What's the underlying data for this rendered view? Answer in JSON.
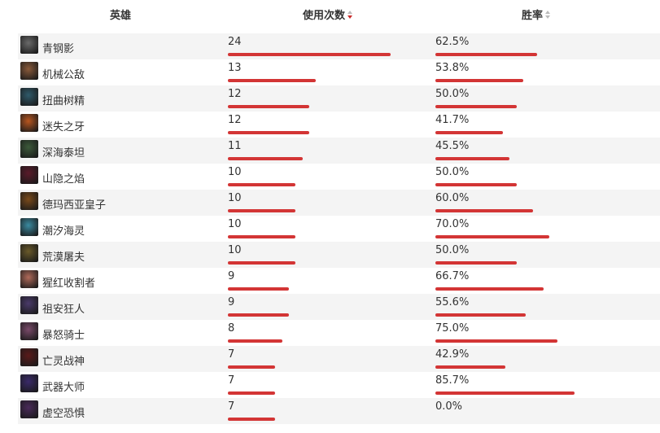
{
  "header": {
    "hero_label": "英雄",
    "usage_label": "使用次数",
    "winrate_label": "胜率",
    "usage_sort_icon": "sort-desc-icon",
    "winrate_sort_icon": "sort-icon"
  },
  "colors": {
    "bar": "#d33535",
    "stripe": "#f4f4f4",
    "sort_active": "#c92a2a"
  },
  "max_usage": 24,
  "rows": [
    {
      "name": "青钢影",
      "usage": "24",
      "usage_num": 24,
      "winrate": "62.5%",
      "winrate_num": 62.5,
      "avatar_color": "#6a6a6a"
    },
    {
      "name": "机械公敌",
      "usage": "13",
      "usage_num": 13,
      "winrate": "53.8%",
      "winrate_num": 53.8,
      "avatar_color": "#8a5a3a"
    },
    {
      "name": "扭曲树精",
      "usage": "12",
      "usage_num": 12,
      "winrate": "50.0%",
      "winrate_num": 50.0,
      "avatar_color": "#2f5a6a"
    },
    {
      "name": "迷失之牙",
      "usage": "12",
      "usage_num": 12,
      "winrate": "41.7%",
      "winrate_num": 41.7,
      "avatar_color": "#b8561f"
    },
    {
      "name": "深海泰坦",
      "usage": "11",
      "usage_num": 11,
      "winrate": "45.5%",
      "winrate_num": 45.5,
      "avatar_color": "#3c5a3a"
    },
    {
      "name": "山隐之焰",
      "usage": "10",
      "usage_num": 10,
      "winrate": "50.0%",
      "winrate_num": 50.0,
      "avatar_color": "#5a1a2a"
    },
    {
      "name": "德玛西亚皇子",
      "usage": "10",
      "usage_num": 10,
      "winrate": "60.0%",
      "winrate_num": 60.0,
      "avatar_color": "#7a4a1a"
    },
    {
      "name": "潮汐海灵",
      "usage": "10",
      "usage_num": 10,
      "winrate": "70.0%",
      "winrate_num": 70.0,
      "avatar_color": "#3a8aa0"
    },
    {
      "name": "荒漠屠夫",
      "usage": "10",
      "usage_num": 10,
      "winrate": "50.0%",
      "winrate_num": 50.0,
      "avatar_color": "#6a5a2a"
    },
    {
      "name": "猩红收割者",
      "usage": "9",
      "usage_num": 9,
      "winrate": "66.7%",
      "winrate_num": 66.7,
      "avatar_color": "#b06a5a"
    },
    {
      "name": "祖安狂人",
      "usage": "9",
      "usage_num": 9,
      "winrate": "55.6%",
      "winrate_num": 55.6,
      "avatar_color": "#4a3a6a"
    },
    {
      "name": "暴怒骑士",
      "usage": "8",
      "usage_num": 8,
      "winrate": "75.0%",
      "winrate_num": 75.0,
      "avatar_color": "#7a4a6a"
    },
    {
      "name": "亡灵战神",
      "usage": "7",
      "usage_num": 7,
      "winrate": "42.9%",
      "winrate_num": 42.9,
      "avatar_color": "#5a1a1a"
    },
    {
      "name": "武器大师",
      "usage": "7",
      "usage_num": 7,
      "winrate": "85.7%",
      "winrate_num": 85.7,
      "avatar_color": "#3a2a6a"
    },
    {
      "name": "虚空恐惧",
      "usage": "7",
      "usage_num": 7,
      "winrate": "0.0%",
      "winrate_num": 0.0,
      "avatar_color": "#4a2a5a"
    }
  ]
}
